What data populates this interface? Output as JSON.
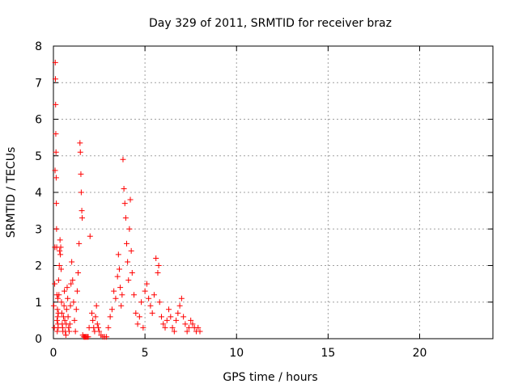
{
  "chart_data": {
    "type": "scatter",
    "title": "Day 329 of 2011, SRMTID for receiver braz",
    "xlabel": "GPS time / hours",
    "ylabel": "SRMTID / TECUs",
    "xlim": [
      0,
      24
    ],
    "ylim": [
      0,
      8
    ],
    "x_ticks": [
      0,
      5,
      10,
      15,
      20
    ],
    "y_ticks": [
      0,
      1,
      2,
      3,
      4,
      5,
      6,
      7,
      8
    ],
    "grid": true,
    "marker": "plus",
    "color": "#ff0000",
    "series": [
      {
        "x": [
          0.02,
          0.05,
          0.07,
          0.08,
          0.09,
          0.1,
          0.11,
          0.12,
          0.13,
          0.14,
          0.15,
          0.16,
          0.17,
          0.18,
          0.19,
          0.2,
          0.21,
          0.22,
          0.23,
          0.24,
          0.25,
          0.26,
          0.27,
          0.28,
          0.3,
          0.32,
          0.34,
          0.36,
          0.38,
          0.4,
          0.42,
          0.44,
          0.46,
          0.48,
          0.5,
          0.52,
          0.55,
          0.58,
          0.6,
          0.62,
          0.65,
          0.68,
          0.7,
          0.72,
          0.75,
          0.78,
          0.8,
          0.83,
          0.86,
          0.9,
          0.93,
          0.96,
          1.0,
          1.05,
          1.1,
          1.15,
          1.2,
          1.25,
          1.3,
          1.35,
          1.4,
          1.45,
          1.47,
          1.5,
          1.52,
          1.55,
          1.57,
          1.6,
          1.65,
          1.7,
          1.75,
          1.8,
          1.85,
          1.9,
          1.95,
          2.0,
          2.1,
          2.15,
          2.2,
          2.25,
          2.3,
          2.35,
          2.4,
          2.45,
          2.5,
          2.6,
          2.7,
          2.8,
          2.9,
          3.0,
          3.1,
          3.2,
          3.3,
          3.4,
          3.5,
          3.55,
          3.6,
          3.65,
          3.7,
          3.75,
          3.8,
          3.85,
          3.9,
          3.95,
          4.0,
          4.05,
          4.1,
          4.15,
          4.2,
          4.25,
          4.3,
          4.4,
          4.5,
          4.6,
          4.7,
          4.8,
          4.9,
          5.0,
          5.1,
          5.2,
          5.3,
          5.4,
          5.5,
          5.6,
          5.7,
          5.75,
          5.8,
          5.9,
          6.0,
          6.1,
          6.2,
          6.3,
          6.4,
          6.5,
          6.6,
          6.7,
          6.8,
          6.9,
          7.0,
          7.1,
          7.2,
          7.3,
          7.4,
          7.5,
          7.6,
          7.7,
          7.8,
          7.9,
          8.0
        ],
        "y": [
          0.9,
          0.3,
          1.5,
          2.5,
          4.6,
          7.55,
          7.1,
          6.4,
          5.6,
          5.1,
          4.4,
          3.7,
          3.0,
          2.5,
          1.2,
          0.5,
          0.2,
          0.8,
          0.6,
          1.1,
          0.4,
          0.3,
          0.7,
          1.6,
          1.2,
          2.0,
          2.4,
          2.7,
          2.3,
          2.5,
          1.9,
          1.0,
          0.7,
          0.4,
          0.3,
          0.2,
          0.6,
          0.9,
          1.3,
          0.5,
          0.2,
          0.1,
          0.4,
          0.8,
          1.4,
          1.1,
          0.6,
          0.3,
          0.2,
          0.4,
          0.9,
          1.5,
          2.1,
          1.6,
          1.0,
          0.5,
          0.2,
          0.8,
          1.3,
          1.8,
          2.6,
          5.35,
          5.1,
          4.5,
          4.0,
          3.5,
          3.3,
          0.1,
          0.05,
          0.05,
          0.05,
          0.05,
          0.05,
          0.05,
          0.3,
          2.8,
          0.7,
          0.5,
          0.3,
          0.2,
          0.6,
          0.9,
          0.4,
          0.3,
          0.2,
          0.1,
          0.05,
          0.05,
          0.05,
          0.3,
          0.6,
          0.8,
          1.3,
          1.1,
          1.7,
          2.3,
          1.9,
          1.4,
          0.9,
          1.2,
          4.9,
          4.1,
          3.7,
          3.3,
          2.6,
          2.1,
          1.6,
          3.0,
          3.8,
          2.4,
          1.8,
          1.2,
          0.7,
          0.4,
          0.6,
          1.0,
          0.3,
          1.3,
          1.5,
          1.1,
          0.9,
          0.7,
          1.2,
          2.2,
          1.8,
          2.0,
          1.0,
          0.6,
          0.4,
          0.3,
          0.5,
          0.8,
          0.6,
          0.3,
          0.2,
          0.5,
          0.7,
          0.9,
          1.1,
          0.6,
          0.4,
          0.2,
          0.3,
          0.5,
          0.4,
          0.3,
          0.2,
          0.3,
          0.2
        ]
      }
    ]
  }
}
